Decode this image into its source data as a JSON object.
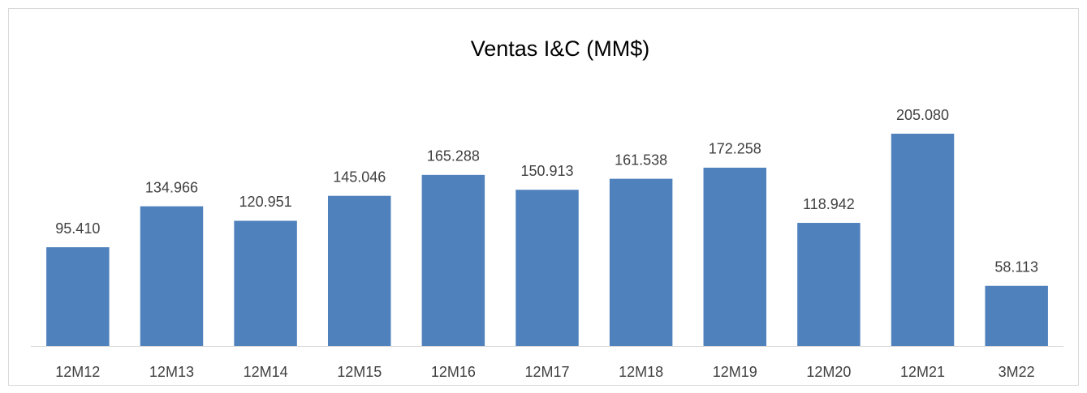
{
  "chart_data": {
    "type": "bar",
    "title": "Ventas  I&C (MM$)",
    "categories": [
      "12M12",
      "12M13",
      "12M14",
      "12M15",
      "12M16",
      "12M17",
      "12M18",
      "12M19",
      "12M20",
      "12M21",
      "3M22"
    ],
    "values": [
      95410,
      134966,
      120951,
      145046,
      165288,
      150913,
      161538,
      172258,
      118942,
      205080,
      58113
    ],
    "value_labels": [
      "95.410",
      "134.966",
      "120.951",
      "145.046",
      "165.288",
      "150.913",
      "161.538",
      "172.258",
      "118.942",
      "205.080",
      "58.113"
    ],
    "color": "#4f81bd"
  }
}
